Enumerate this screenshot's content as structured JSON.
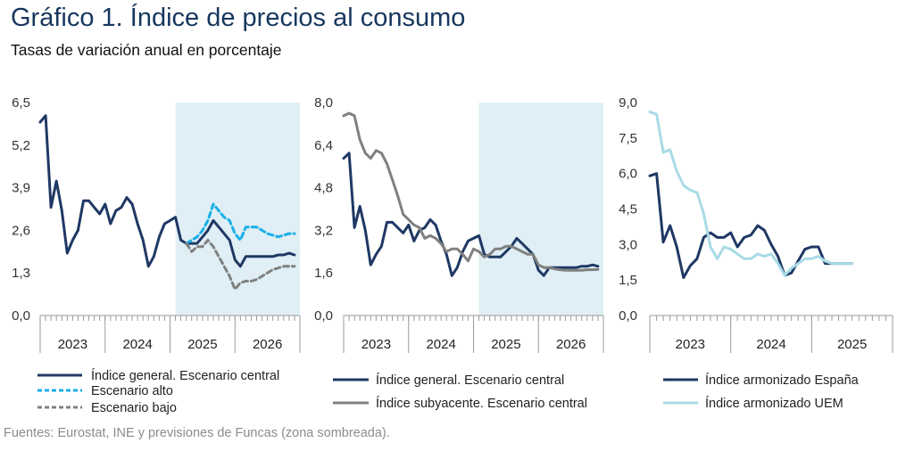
{
  "header": {
    "title_prefix": "Gráfico 1.",
    "title_main": "Índice de precios al consumo",
    "subtitle": "Tasas de variación anual en porcentaje"
  },
  "source": "Fuentes: Eurostat, INE y previsiones de Funcas (zona sombreada).",
  "colors": {
    "navy": "#1f3864",
    "cyan": "#1ab0e8",
    "gray": "#808080",
    "lightblue": "#a8dbe6",
    "shade": "#e0eff5"
  },
  "chart_data": [
    {
      "type": "line",
      "ylim": [
        0,
        6.5
      ],
      "yticks": [
        "0,0",
        "1,3",
        "2,6",
        "3,9",
        "5,2",
        "6,5"
      ],
      "x_years": [
        "2023",
        "2024",
        "2025",
        "2026"
      ],
      "x_range_months": [
        0,
        48
      ],
      "forecast_start_month": 25,
      "legend": [
        "Índice general. Escenario central",
        "Escenario alto",
        "Escenario bajo"
      ],
      "series": [
        {
          "name": "Índice general. Escenario central",
          "x": [
            0,
            1,
            2,
            3,
            4,
            5,
            6,
            7,
            8,
            9,
            10,
            11,
            12,
            13,
            14,
            15,
            16,
            17,
            18,
            19,
            20,
            21,
            22,
            23,
            24,
            25,
            26,
            27,
            28,
            29,
            30,
            31,
            32,
            33,
            34,
            35,
            36,
            37,
            38,
            39,
            40,
            41,
            42,
            43,
            44,
            45,
            46,
            47
          ],
          "values": [
            5.9,
            6.1,
            3.3,
            4.1,
            3.2,
            1.9,
            2.3,
            2.6,
            3.5,
            3.5,
            3.3,
            3.1,
            3.4,
            2.8,
            3.2,
            3.3,
            3.6,
            3.4,
            2.8,
            2.3,
            1.5,
            1.8,
            2.4,
            2.8,
            2.9,
            3.0,
            2.3,
            2.2,
            2.2,
            2.2,
            2.4,
            2.6,
            2.9,
            2.7,
            2.5,
            2.3,
            1.7,
            1.5,
            1.8,
            1.8,
            1.8,
            1.8,
            1.8,
            1.8,
            1.85,
            1.85,
            1.9,
            1.85
          ]
        },
        {
          "name": "Escenario alto",
          "x": [
            27,
            28,
            29,
            30,
            31,
            32,
            33,
            34,
            35,
            36,
            37,
            38,
            39,
            40,
            41,
            42,
            43,
            44,
            45,
            46,
            47
          ],
          "values": [
            2.2,
            2.3,
            2.4,
            2.6,
            2.9,
            3.4,
            3.2,
            3.0,
            2.9,
            2.5,
            2.3,
            2.7,
            2.7,
            2.7,
            2.6,
            2.5,
            2.45,
            2.4,
            2.45,
            2.5,
            2.5
          ]
        },
        {
          "name": "Escenario bajo",
          "x": [
            27,
            28,
            29,
            30,
            31,
            32,
            33,
            34,
            35,
            36,
            37,
            38,
            39,
            40,
            41,
            42,
            43,
            44,
            45,
            46,
            47
          ],
          "values": [
            2.2,
            1.95,
            2.1,
            2.1,
            2.3,
            2.1,
            1.8,
            1.5,
            1.2,
            0.8,
            1.0,
            1.05,
            1.05,
            1.1,
            1.2,
            1.3,
            1.4,
            1.45,
            1.5,
            1.5,
            1.5
          ]
        }
      ]
    },
    {
      "type": "line",
      "ylim": [
        0,
        8.0
      ],
      "yticks": [
        "0,0",
        "1,6",
        "3,2",
        "4,8",
        "6,4",
        "8,0"
      ],
      "x_years": [
        "2023",
        "2024",
        "2025",
        "2026"
      ],
      "x_range_months": [
        0,
        48
      ],
      "forecast_start_month": 25,
      "legend": [
        "Índice general. Escenario central",
        "Índice subyacente. Escenario central"
      ],
      "series": [
        {
          "name": "Índice general. Escenario central",
          "x": [
            0,
            1,
            2,
            3,
            4,
            5,
            6,
            7,
            8,
            9,
            10,
            11,
            12,
            13,
            14,
            15,
            16,
            17,
            18,
            19,
            20,
            21,
            22,
            23,
            24,
            25,
            26,
            27,
            28,
            29,
            30,
            31,
            32,
            33,
            34,
            35,
            36,
            37,
            38,
            39,
            40,
            41,
            42,
            43,
            44,
            45,
            46,
            47
          ],
          "values": [
            5.9,
            6.1,
            3.3,
            4.1,
            3.2,
            1.9,
            2.3,
            2.6,
            3.5,
            3.5,
            3.3,
            3.1,
            3.4,
            2.8,
            3.2,
            3.3,
            3.6,
            3.4,
            2.8,
            2.3,
            1.5,
            1.8,
            2.4,
            2.8,
            2.9,
            3.0,
            2.3,
            2.2,
            2.2,
            2.2,
            2.4,
            2.6,
            2.9,
            2.7,
            2.5,
            2.3,
            1.7,
            1.5,
            1.8,
            1.8,
            1.8,
            1.8,
            1.8,
            1.8,
            1.85,
            1.85,
            1.9,
            1.85
          ]
        },
        {
          "name": "Índice subyacente. Escenario central",
          "x": [
            0,
            1,
            2,
            3,
            4,
            5,
            6,
            7,
            8,
            9,
            10,
            11,
            12,
            13,
            14,
            15,
            16,
            17,
            18,
            19,
            20,
            21,
            22,
            23,
            24,
            25,
            26,
            27,
            28,
            29,
            30,
            31,
            32,
            33,
            34,
            35,
            36,
            37,
            38,
            39,
            40,
            41,
            42,
            43,
            44,
            45,
            46,
            47
          ],
          "values": [
            7.5,
            7.6,
            7.5,
            6.6,
            6.1,
            5.9,
            6.2,
            6.1,
            5.7,
            5.1,
            4.5,
            3.8,
            3.6,
            3.4,
            3.3,
            2.9,
            3.0,
            2.9,
            2.7,
            2.4,
            2.5,
            2.5,
            2.3,
            2.05,
            2.5,
            2.4,
            2.2,
            2.3,
            2.5,
            2.5,
            2.6,
            2.6,
            2.5,
            2.4,
            2.3,
            2.3,
            1.9,
            1.8,
            1.8,
            1.75,
            1.72,
            1.7,
            1.7,
            1.7,
            1.7,
            1.72,
            1.72,
            1.73
          ]
        }
      ]
    },
    {
      "type": "line",
      "ylim": [
        0,
        9.0
      ],
      "yticks": [
        "0,0",
        "1,5",
        "3,0",
        "4,5",
        "6,0",
        "7,5",
        "9,0"
      ],
      "x_years": [
        "2023",
        "2024",
        "2025"
      ],
      "x_range_months": [
        0,
        36
      ],
      "legend": [
        "Índice armonizado España",
        "Índice armonizado UEM"
      ],
      "series": [
        {
          "name": "Índice armonizado España",
          "x": [
            0,
            1,
            2,
            3,
            4,
            5,
            6,
            7,
            8,
            9,
            10,
            11,
            12,
            13,
            14,
            15,
            16,
            17,
            18,
            19,
            20,
            21,
            22,
            23,
            24,
            25,
            26,
            27,
            28,
            29,
            30
          ],
          "values": [
            5.9,
            6.0,
            3.1,
            3.8,
            2.9,
            1.6,
            2.1,
            2.4,
            3.3,
            3.5,
            3.3,
            3.3,
            3.5,
            2.9,
            3.3,
            3.4,
            3.8,
            3.6,
            3.0,
            2.5,
            1.7,
            1.8,
            2.3,
            2.8,
            2.9,
            2.9,
            2.2,
            2.2,
            2.2,
            2.2,
            2.2
          ]
        },
        {
          "name": "Índice armonizado UEM",
          "x": [
            0,
            1,
            2,
            3,
            4,
            5,
            6,
            7,
            8,
            9,
            10,
            11,
            12,
            13,
            14,
            15,
            16,
            17,
            18,
            19,
            20,
            21,
            22,
            23,
            24,
            25,
            26,
            27,
            28,
            29,
            30
          ],
          "values": [
            8.6,
            8.5,
            6.9,
            7.0,
            6.1,
            5.5,
            5.3,
            5.2,
            4.3,
            2.9,
            2.4,
            2.9,
            2.8,
            2.6,
            2.4,
            2.4,
            2.6,
            2.5,
            2.6,
            2.2,
            1.7,
            2.0,
            2.2,
            2.4,
            2.4,
            2.5,
            2.3,
            2.2,
            2.2,
            2.2,
            2.2
          ]
        }
      ]
    }
  ]
}
